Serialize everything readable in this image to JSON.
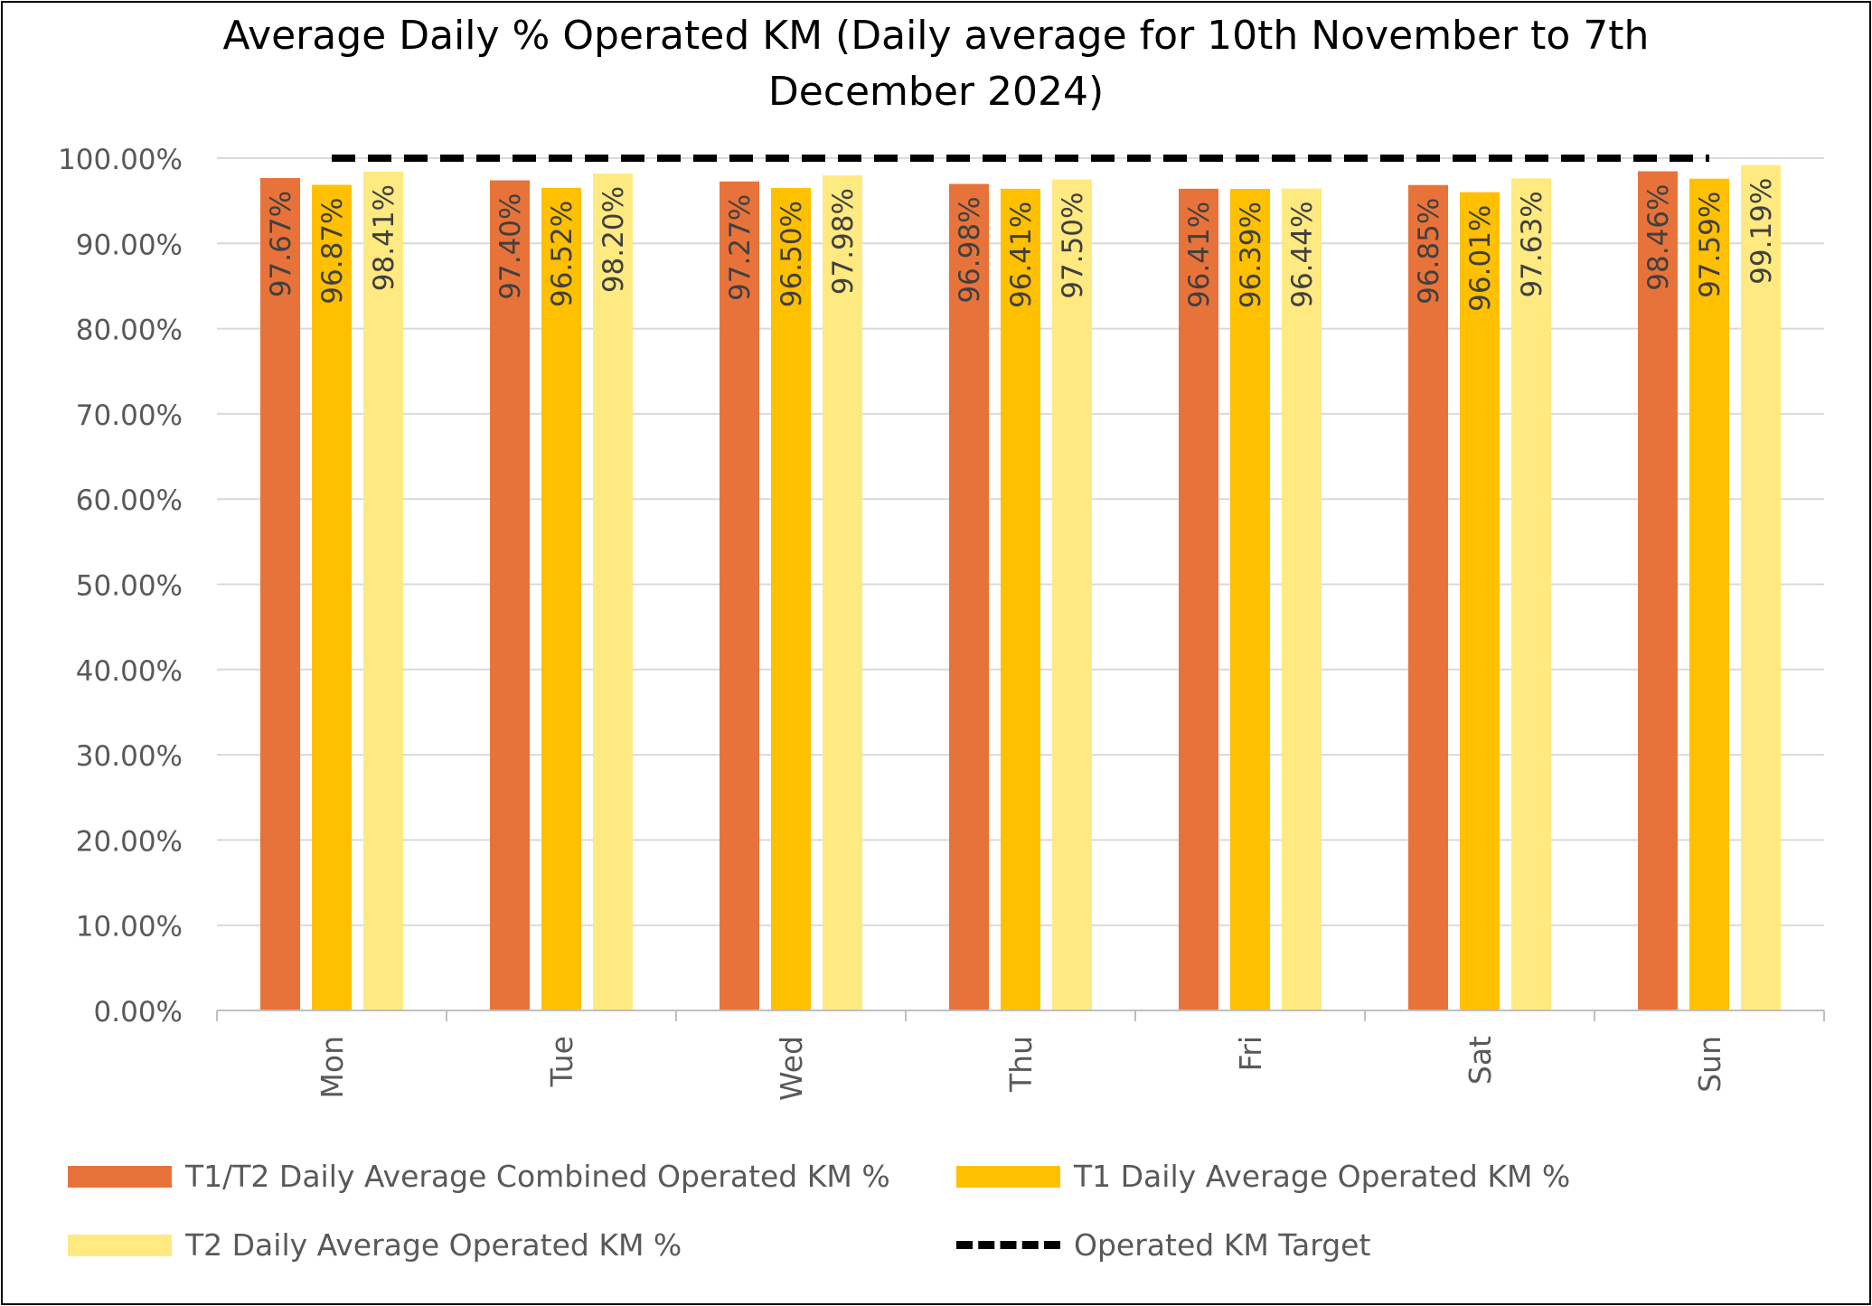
{
  "chart_data": {
    "type": "bar",
    "title": "Average Daily % Operated KM (Daily average for 10th November to 7th December 2024)",
    "title_lines": [
      "Average Daily % Operated KM (Daily average for 10th November to 7th",
      "December 2024)"
    ],
    "categories": [
      "Mon",
      "Tue",
      "Wed",
      "Thu",
      "Fri",
      "Sat",
      "Sun"
    ],
    "series": [
      {
        "name": "T1/T2 Daily Average Combined Operated KM %",
        "color": "#E8733A",
        "values": [
          97.67,
          97.4,
          97.27,
          96.98,
          96.41,
          96.85,
          98.46
        ],
        "labels": [
          "97.67%",
          "97.40%",
          "97.27%",
          "96.98%",
          "96.41%",
          "96.85%",
          "98.46%"
        ]
      },
      {
        "name": "T1 Daily Average Operated KM %",
        "color": "#FFC000",
        "values": [
          96.87,
          96.52,
          96.5,
          96.41,
          96.39,
          96.01,
          97.59
        ],
        "labels": [
          "96.87%",
          "96.52%",
          "96.50%",
          "96.41%",
          "96.39%",
          "96.01%",
          "97.59%"
        ]
      },
      {
        "name": "T2 Daily Average Operated KM %",
        "color": "#FFE981",
        "values": [
          98.41,
          98.2,
          97.98,
          97.5,
          96.44,
          97.63,
          99.19
        ],
        "labels": [
          "98.41%",
          "98.20%",
          "97.98%",
          "97.50%",
          "96.44%",
          "97.63%",
          "99.19%"
        ]
      }
    ],
    "target": {
      "name": "Operated KM Target",
      "value": 100,
      "style": "dashed",
      "color": "#000000"
    },
    "ylim": [
      0,
      100
    ],
    "yticks": [
      0,
      10,
      20,
      30,
      40,
      50,
      60,
      70,
      80,
      90,
      100
    ],
    "ytick_labels": [
      "0.00%",
      "10.00%",
      "20.00%",
      "30.00%",
      "40.00%",
      "50.00%",
      "60.00%",
      "70.00%",
      "80.00%",
      "90.00%",
      "100.00%"
    ],
    "xlabel": "",
    "ylabel": "",
    "grid": true,
    "legend_position": "bottom"
  }
}
